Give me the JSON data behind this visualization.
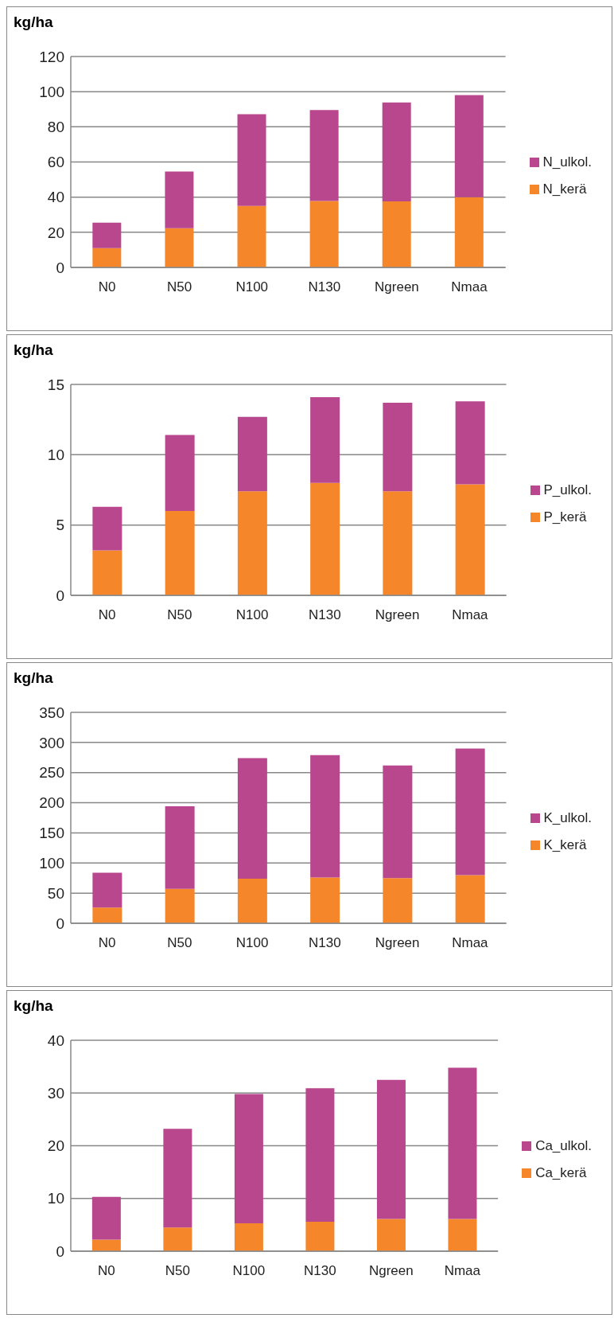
{
  "chart_data": [
    {
      "type": "bar",
      "ylabel": "kg/ha",
      "categories": [
        "N0",
        "N50",
        "N100",
        "N130",
        "Ngreen",
        "Nmaa"
      ],
      "stacked": true,
      "ylim": [
        0,
        120
      ],
      "yticks": [
        0,
        20,
        40,
        60,
        80,
        100,
        120
      ],
      "grid": "y",
      "legend": "right",
      "series": [
        {
          "name": "N_kerä",
          "color": "#f5862a",
          "values": [
            11,
            22.3,
            35,
            37.8,
            37.6,
            40
          ]
        },
        {
          "name": "N_ulkol.",
          "color": "#b8478e",
          "values": [
            14.5,
            32.3,
            52.2,
            51.8,
            56.3,
            58
          ]
        }
      ]
    },
    {
      "type": "bar",
      "ylabel": "kg/ha",
      "categories": [
        "N0",
        "N50",
        "N100",
        "N130",
        "Ngreen",
        "Nmaa"
      ],
      "stacked": true,
      "ylim": [
        0,
        15
      ],
      "yticks": [
        0,
        5,
        10,
        15
      ],
      "grid": "y",
      "legend": "right",
      "series": [
        {
          "name": "P_kerä",
          "color": "#f5862a",
          "values": [
            3.2,
            6.0,
            7.4,
            8.0,
            7.4,
            7.9
          ]
        },
        {
          "name": "P_ulkol.",
          "color": "#b8478e",
          "values": [
            3.1,
            5.4,
            5.3,
            6.1,
            6.3,
            5.9
          ]
        }
      ]
    },
    {
      "type": "bar",
      "ylabel": "kg/ha",
      "categories": [
        "N0",
        "N50",
        "N100",
        "N130",
        "Ngreen",
        "Nmaa"
      ],
      "stacked": true,
      "ylim": [
        0,
        350
      ],
      "yticks": [
        0,
        50,
        100,
        150,
        200,
        250,
        300,
        350
      ],
      "grid": "y",
      "legend": "right",
      "series": [
        {
          "name": "K_kerä",
          "color": "#f5862a",
          "values": [
            26,
            57,
            74,
            76,
            75,
            80
          ]
        },
        {
          "name": "K_ulkol.",
          "color": "#b8478e",
          "values": [
            58,
            137,
            200,
            203,
            187,
            210
          ]
        }
      ]
    },
    {
      "type": "bar",
      "ylabel": "kg/ha",
      "categories": [
        "N0",
        "N50",
        "N100",
        "N130",
        "Ngreen",
        "Nmaa"
      ],
      "stacked": true,
      "ylim": [
        0,
        40
      ],
      "yticks": [
        0,
        10,
        20,
        30,
        40
      ],
      "grid": "y",
      "legend": "right",
      "series": [
        {
          "name": "Ca_kerä",
          "color": "#f5862a",
          "values": [
            2.2,
            4.5,
            5.3,
            5.6,
            6.1,
            6.1
          ]
        },
        {
          "name": "Ca_ulkol.",
          "color": "#b8478e",
          "values": [
            8.1,
            18.7,
            24.5,
            25.3,
            26.4,
            28.7
          ]
        }
      ]
    }
  ]
}
